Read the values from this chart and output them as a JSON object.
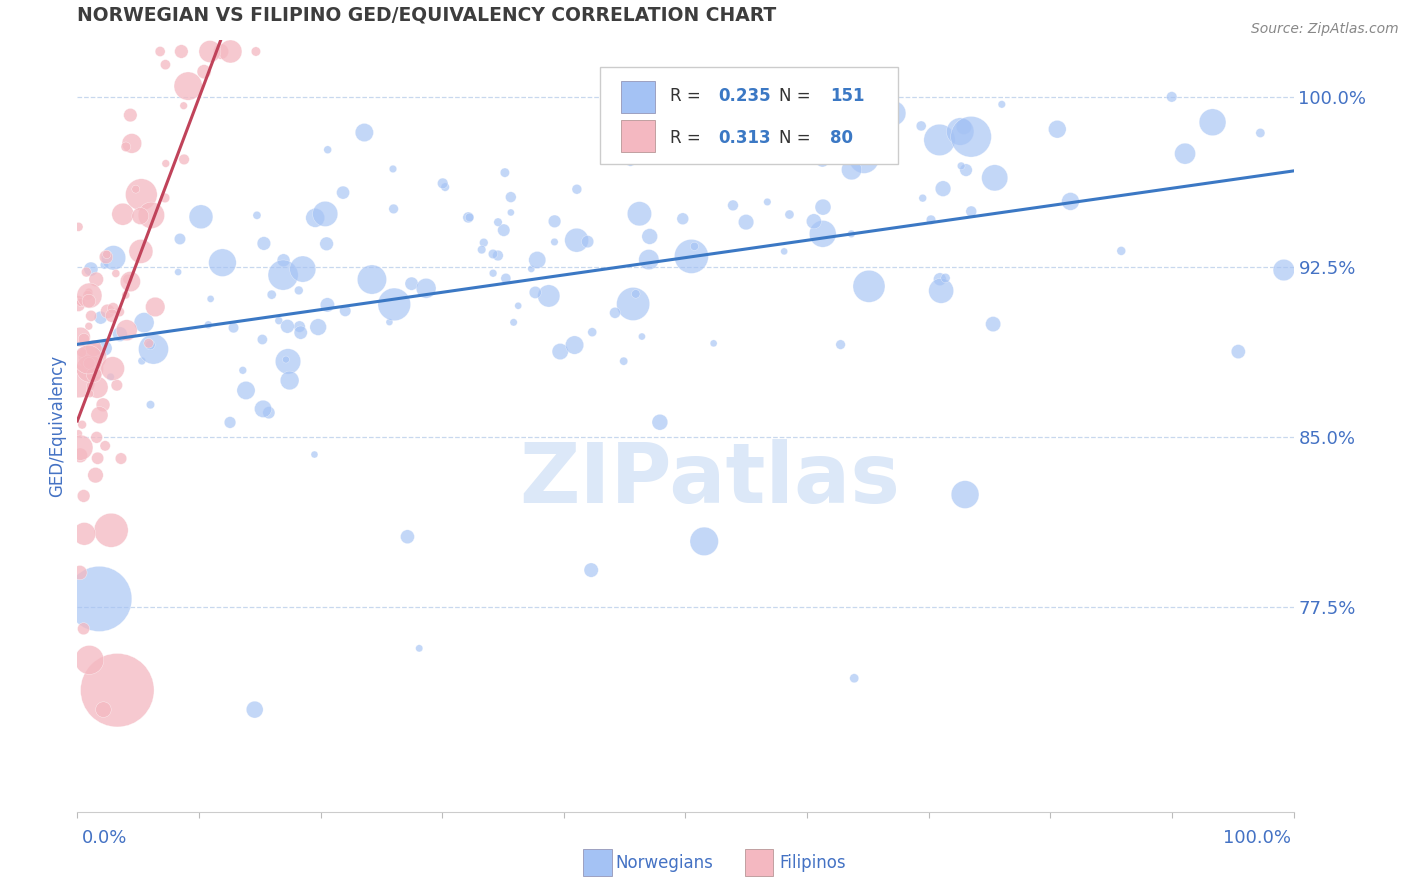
{
  "title": "NORWEGIAN VS FILIPINO GED/EQUIVALENCY CORRELATION CHART",
  "source": "Source: ZipAtlas.com",
  "ylabel": "GED/Equivalency",
  "ytick_labels": [
    "77.5%",
    "85.0%",
    "92.5%",
    "100.0%"
  ],
  "ytick_values": [
    0.775,
    0.85,
    0.925,
    1.0
  ],
  "xlim": [
    0.0,
    1.0
  ],
  "ylim": [
    0.685,
    1.025
  ],
  "legend_R1": "0.235",
  "legend_N1": "151",
  "legend_R2": "0.313",
  "legend_N2": "80",
  "blue_color": "#a4c2f4",
  "pink_color": "#f4b8c1",
  "blue_line_color": "#3b78c4",
  "pink_line_color": "#c0435a",
  "watermark_color": "#dce8f8",
  "background_color": "#ffffff",
  "title_color": "#3d3d3d",
  "axis_label_color": "#4472c4",
  "grid_color": "#c8d8ee",
  "legend_text_color": "#333333"
}
